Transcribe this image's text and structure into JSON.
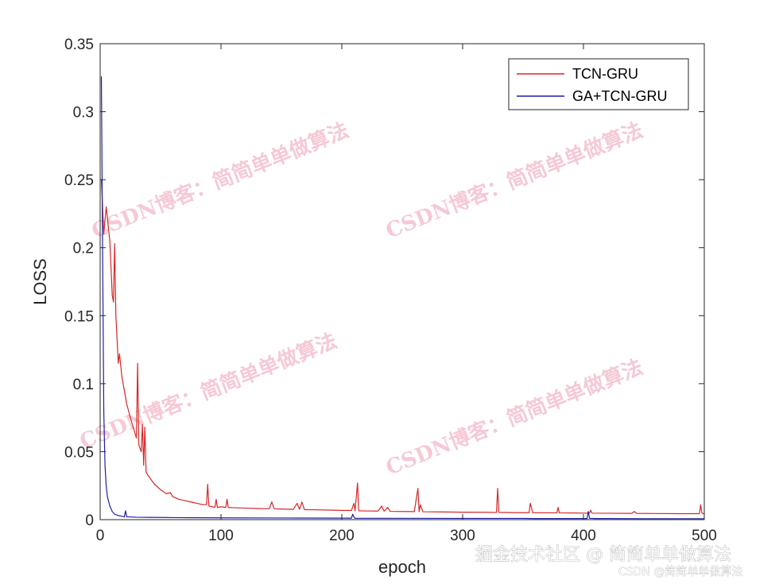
{
  "chart_data": {
    "type": "line",
    "xlabel": "epoch",
    "ylabel": "LOSS",
    "xlim": [
      0,
      500
    ],
    "ylim": [
      0,
      0.35
    ],
    "xticks": [
      0,
      100,
      200,
      300,
      400,
      500
    ],
    "xtick_labels": [
      "0",
      "100",
      "200",
      "300",
      "400",
      "500"
    ],
    "yticks": [
      0,
      0.05,
      0.1,
      0.15,
      0.2,
      0.25,
      0.3,
      0.35
    ],
    "ytick_labels": [
      "0",
      "0.05",
      "0.1",
      "0.15",
      "0.2",
      "0.25",
      "0.3",
      "0.35"
    ],
    "grid": false,
    "legend_position": "top-right",
    "series": [
      {
        "name": "TCN-GRU",
        "color": "#d62728",
        "points": [
          [
            1,
            0.25
          ],
          [
            3,
            0.21
          ],
          [
            5,
            0.23
          ],
          [
            8,
            0.205
          ],
          [
            10,
            0.165
          ],
          [
            11,
            0.16
          ],
          [
            12,
            0.203
          ],
          [
            13,
            0.15
          ],
          [
            15,
            0.115
          ],
          [
            16,
            0.122
          ],
          [
            18,
            0.105
          ],
          [
            20,
            0.095
          ],
          [
            22,
            0.085
          ],
          [
            25,
            0.075
          ],
          [
            28,
            0.066
          ],
          [
            30,
            0.06
          ],
          [
            31,
            0.115
          ],
          [
            32,
            0.055
          ],
          [
            34,
            0.05
          ],
          [
            35,
            0.07
          ],
          [
            36,
            0.04
          ],
          [
            37,
            0.068
          ],
          [
            38,
            0.035
          ],
          [
            40,
            0.032
          ],
          [
            45,
            0.026
          ],
          [
            50,
            0.022
          ],
          [
            55,
            0.019
          ],
          [
            58,
            0.02
          ],
          [
            60,
            0.017
          ],
          [
            65,
            0.015
          ],
          [
            70,
            0.014
          ],
          [
            75,
            0.013
          ],
          [
            80,
            0.012
          ],
          [
            85,
            0.011
          ],
          [
            88,
            0.011
          ],
          [
            89,
            0.026
          ],
          [
            90,
            0.01
          ],
          [
            95,
            0.009
          ],
          [
            96,
            0.015
          ],
          [
            97,
            0.009
          ],
          [
            100,
            0.0095
          ],
          [
            104,
            0.009
          ],
          [
            105,
            0.015
          ],
          [
            106,
            0.009
          ],
          [
            110,
            0.0088
          ],
          [
            120,
            0.0085
          ],
          [
            130,
            0.0082
          ],
          [
            140,
            0.008
          ],
          [
            142,
            0.013
          ],
          [
            144,
            0.008
          ],
          [
            150,
            0.0078
          ],
          [
            160,
            0.0076
          ],
          [
            163,
            0.012
          ],
          [
            165,
            0.0075
          ],
          [
            167,
            0.013
          ],
          [
            169,
            0.0074
          ],
          [
            180,
            0.0072
          ],
          [
            190,
            0.007
          ],
          [
            200,
            0.0068
          ],
          [
            208,
            0.0067
          ],
          [
            210,
            0.012
          ],
          [
            211,
            0.0065
          ],
          [
            213,
            0.027
          ],
          [
            214,
            0.0065
          ],
          [
            220,
            0.0064
          ],
          [
            230,
            0.0063
          ],
          [
            233,
            0.01
          ],
          [
            235,
            0.0062
          ],
          [
            238,
            0.009
          ],
          [
            240,
            0.0061
          ],
          [
            250,
            0.006
          ],
          [
            260,
            0.0059
          ],
          [
            263,
            0.023
          ],
          [
            264,
            0.0058
          ],
          [
            265,
            0.011
          ],
          [
            267,
            0.0058
          ],
          [
            280,
            0.0057
          ],
          [
            300,
            0.0055
          ],
          [
            320,
            0.0054
          ],
          [
            328,
            0.0053
          ],
          [
            329,
            0.023
          ],
          [
            330,
            0.0053
          ],
          [
            340,
            0.0052
          ],
          [
            355,
            0.0051
          ],
          [
            356,
            0.012
          ],
          [
            358,
            0.0051
          ],
          [
            370,
            0.005
          ],
          [
            378,
            0.005
          ],
          [
            379,
            0.009
          ],
          [
            380,
            0.005
          ],
          [
            390,
            0.0049
          ],
          [
            405,
            0.0048
          ],
          [
            406,
            0.007
          ],
          [
            407,
            0.0048
          ],
          [
            420,
            0.0047
          ],
          [
            440,
            0.0046
          ],
          [
            442,
            0.006
          ],
          [
            444,
            0.0046
          ],
          [
            460,
            0.0045
          ],
          [
            480,
            0.0044
          ],
          [
            496,
            0.0044
          ],
          [
            497,
            0.011
          ],
          [
            498,
            0.005
          ],
          [
            500,
            0.004
          ]
        ]
      },
      {
        "name": "GA+TCN-GRU",
        "color": "#1f1fa8",
        "points": [
          [
            1,
            0.326
          ],
          [
            2,
            0.2
          ],
          [
            3,
            0.08
          ],
          [
            4,
            0.04
          ],
          [
            5,
            0.025
          ],
          [
            6,
            0.017
          ],
          [
            8,
            0.01
          ],
          [
            10,
            0.006
          ],
          [
            12,
            0.004
          ],
          [
            15,
            0.003
          ],
          [
            18,
            0.0025
          ],
          [
            20,
            0.002
          ],
          [
            21,
            0.0065
          ],
          [
            22,
            0.002
          ],
          [
            25,
            0.002
          ],
          [
            30,
            0.0018
          ],
          [
            40,
            0.0017
          ],
          [
            50,
            0.0016
          ],
          [
            60,
            0.0015
          ],
          [
            80,
            0.0014
          ],
          [
            100,
            0.0013
          ],
          [
            150,
            0.0012
          ],
          [
            200,
            0.0011
          ],
          [
            208,
            0.0011
          ],
          [
            209,
            0.004
          ],
          [
            210,
            0.002
          ],
          [
            211,
            0.001
          ],
          [
            250,
            0.001
          ],
          [
            300,
            0.0009
          ],
          [
            350,
            0.0009
          ],
          [
            360,
            0.0008
          ],
          [
            380,
            0.0008
          ],
          [
            403,
            0.0008
          ],
          [
            404,
            0.006
          ],
          [
            405,
            0.001
          ],
          [
            410,
            0.0008
          ],
          [
            420,
            0.0008
          ],
          [
            450,
            0.0007
          ],
          [
            500,
            0.0007
          ]
        ]
      }
    ]
  },
  "watermarks": [
    "CSDN博客：简简单单做算法",
    "CSDN博客：简简单单做算法",
    "CSDN博客：简简单单做算法",
    "CSDN博客：简简单单做算法"
  ],
  "footer": {
    "main": "掘金技术社区 @ 简简单单做算法",
    "sub": "CSDN @简简单单做算法"
  }
}
